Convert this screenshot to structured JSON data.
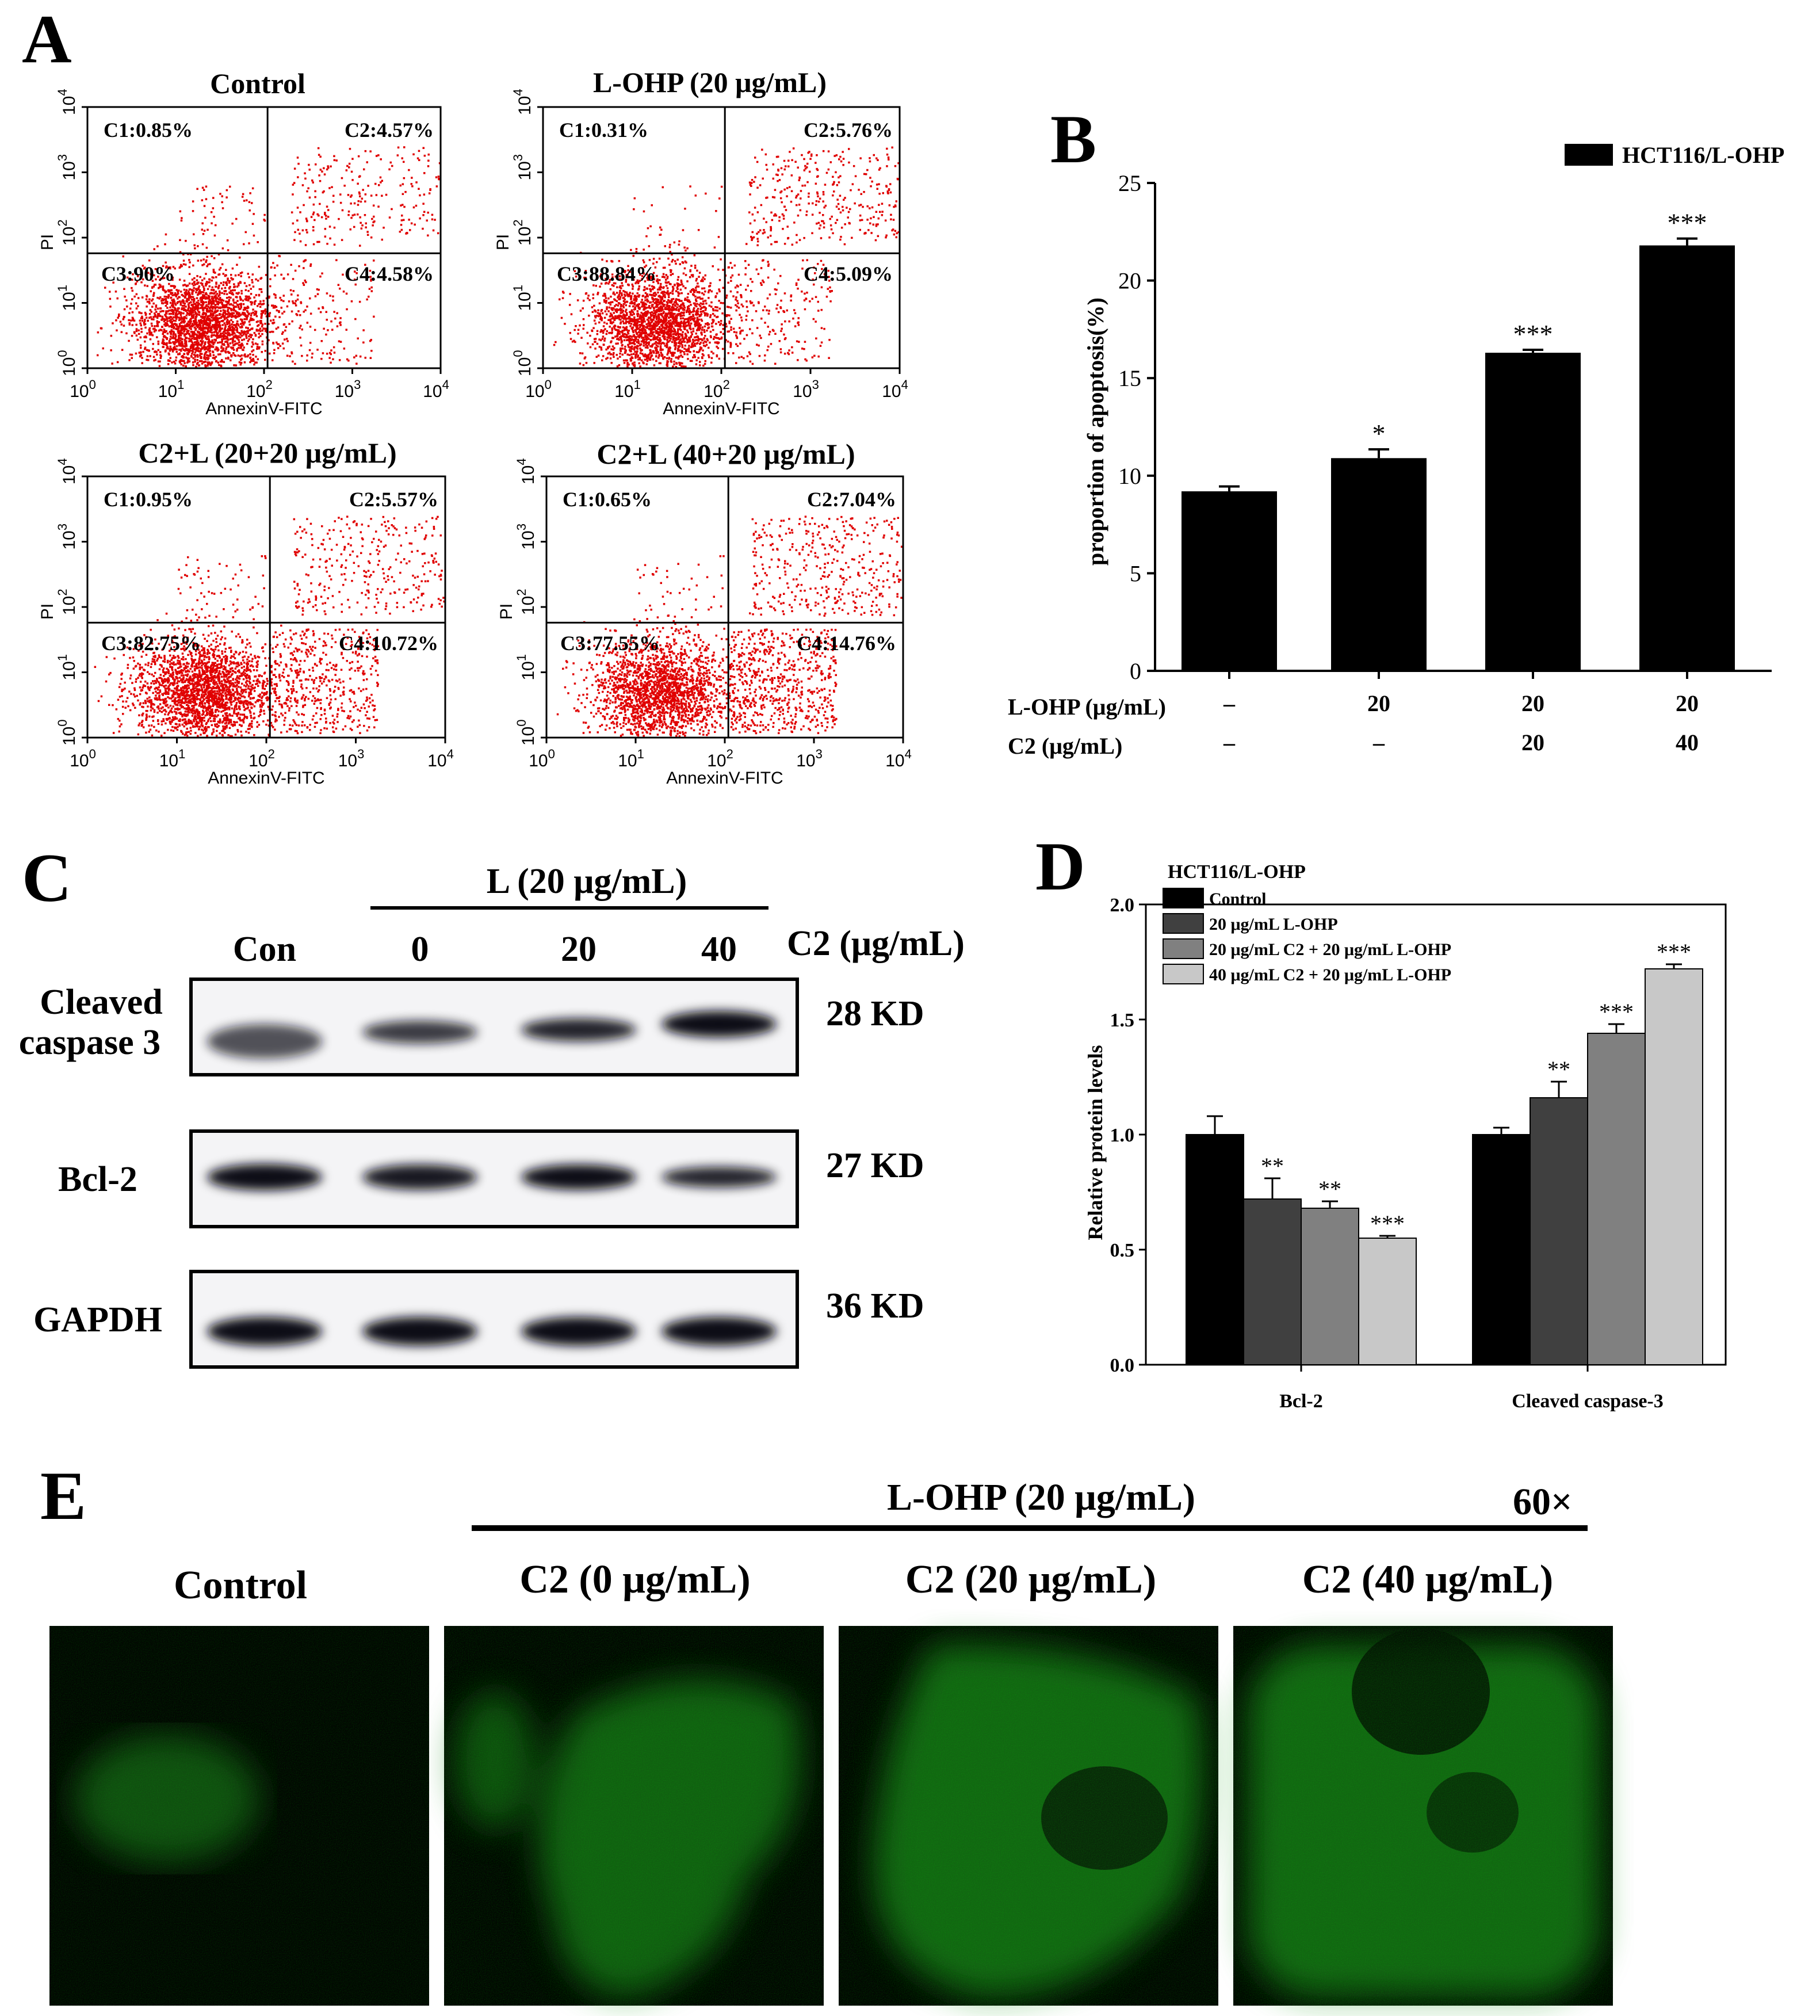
{
  "panels": {
    "A": {
      "letter": "A",
      "xlabel": "AnnexinV-FITC",
      "ylabel": "PI",
      "ticks": [
        "0",
        "1",
        "2",
        "3",
        "4"
      ],
      "tick_base": "10",
      "plots": [
        {
          "title": "Control",
          "c1": "C1:0.85%",
          "c2": "C2:4.57%",
          "c3": "C3:90%",
          "c4": "C4:4.58%"
        },
        {
          "title": "L-OHP (20 μg/mL)",
          "c1": "C1:0.31%",
          "c2": "C2:5.76%",
          "c3": "C3:88.84%",
          "c4": "C4:5.09%"
        },
        {
          "title": "C2+L (20+20 μg/mL)",
          "c1": "C1:0.95%",
          "c2": "C2:5.57%",
          "c3": "C3:82.75%",
          "c4": "C4:10.72%"
        },
        {
          "title": "C2+L (40+20 μg/mL)",
          "c1": "C1:0.65%",
          "c2": "C2:7.04%",
          "c3": "C3:77.55%",
          "c4": "C4:14.76%"
        }
      ],
      "dot_color": "#e00000"
    },
    "B": {
      "letter": "B",
      "row1_label": "L-OHP (μg/mL)",
      "row2_label": "C2 (μg/mL)",
      "row1": [
        "–",
        "20",
        "20",
        "20"
      ],
      "row2": [
        "–",
        "–",
        "20",
        "40"
      ]
    },
    "C": {
      "letter": "C",
      "group_label": "L (20 μg/mL)",
      "lane_labels": [
        "Con",
        "0",
        "20",
        "40"
      ],
      "c2_label": "C2 (μg/mL)",
      "blots": [
        {
          "label_line1": "Cleaved",
          "label_line2": "caspase 3",
          "size": "28 KD"
        },
        {
          "label_line1": "Bcl-2",
          "label_line2": "",
          "size": "27 KD"
        },
        {
          "label_line1": "GAPDH",
          "label_line2": "",
          "size": "36 KD"
        }
      ]
    },
    "D": {
      "letter": "D",
      "legend_title": "HCT116/L-OHP"
    },
    "E": {
      "letter": "E",
      "group_label": "L-OHP (20 μg/mL)",
      "magnification": "60×",
      "labels": [
        "Control",
        "C2 (0 μg/mL)",
        "C2 (20 μg/mL)",
        "C2 (40 μg/mL)"
      ],
      "fluor_color": "#22c822"
    }
  },
  "chart_data": [
    {
      "panel": "B",
      "type": "bar",
      "categories": [
        "1",
        "2",
        "3",
        "4"
      ],
      "series": [
        {
          "name": "HCT116/L-OHP",
          "values": [
            9.2,
            10.9,
            16.3,
            21.8
          ],
          "errors": [
            0.25,
            0.45,
            0.15,
            0.35
          ],
          "significance": [
            "",
            "*",
            "***",
            "***"
          ]
        }
      ],
      "ylabel": "proportion of apoptosis(%)",
      "ylim": [
        0,
        25
      ],
      "yticks": [
        "0",
        "5",
        "10",
        "15",
        "20",
        "25"
      ],
      "legend_position": "top-right",
      "bar_color": "#000000"
    },
    {
      "panel": "D",
      "type": "bar",
      "categories": [
        "Bcl-2",
        "Cleaved caspase-3"
      ],
      "series": [
        {
          "name": "Control",
          "values": [
            1.0,
            1.0
          ],
          "errors": [
            0.08,
            0.03
          ],
          "significance": [
            "",
            ""
          ],
          "color": "#000000"
        },
        {
          "name": "20 μg/mL L-OHP",
          "values": [
            0.72,
            1.16
          ],
          "errors": [
            0.09,
            0.07
          ],
          "significance": [
            "**",
            "**"
          ],
          "color": "#404040"
        },
        {
          "name": "20 μg/mL C2 + 20 μg/mL L-OHP",
          "values": [
            0.68,
            1.44
          ],
          "errors": [
            0.03,
            0.04
          ],
          "significance": [
            "**",
            "***"
          ],
          "color": "#808080"
        },
        {
          "name": "40 μg/mL C2 + 20 μg/mL L-OHP",
          "values": [
            0.55,
            1.72
          ],
          "errors": [
            0.01,
            0.02
          ],
          "significance": [
            "***",
            "***"
          ],
          "color": "#c8c8c8"
        }
      ],
      "ylabel": "Relative protein levels",
      "ylim": [
        0,
        2.0
      ],
      "yticks": [
        "0.0",
        "0.5",
        "1.0",
        "1.5",
        "2.0"
      ],
      "legend_position": "top-left"
    }
  ]
}
